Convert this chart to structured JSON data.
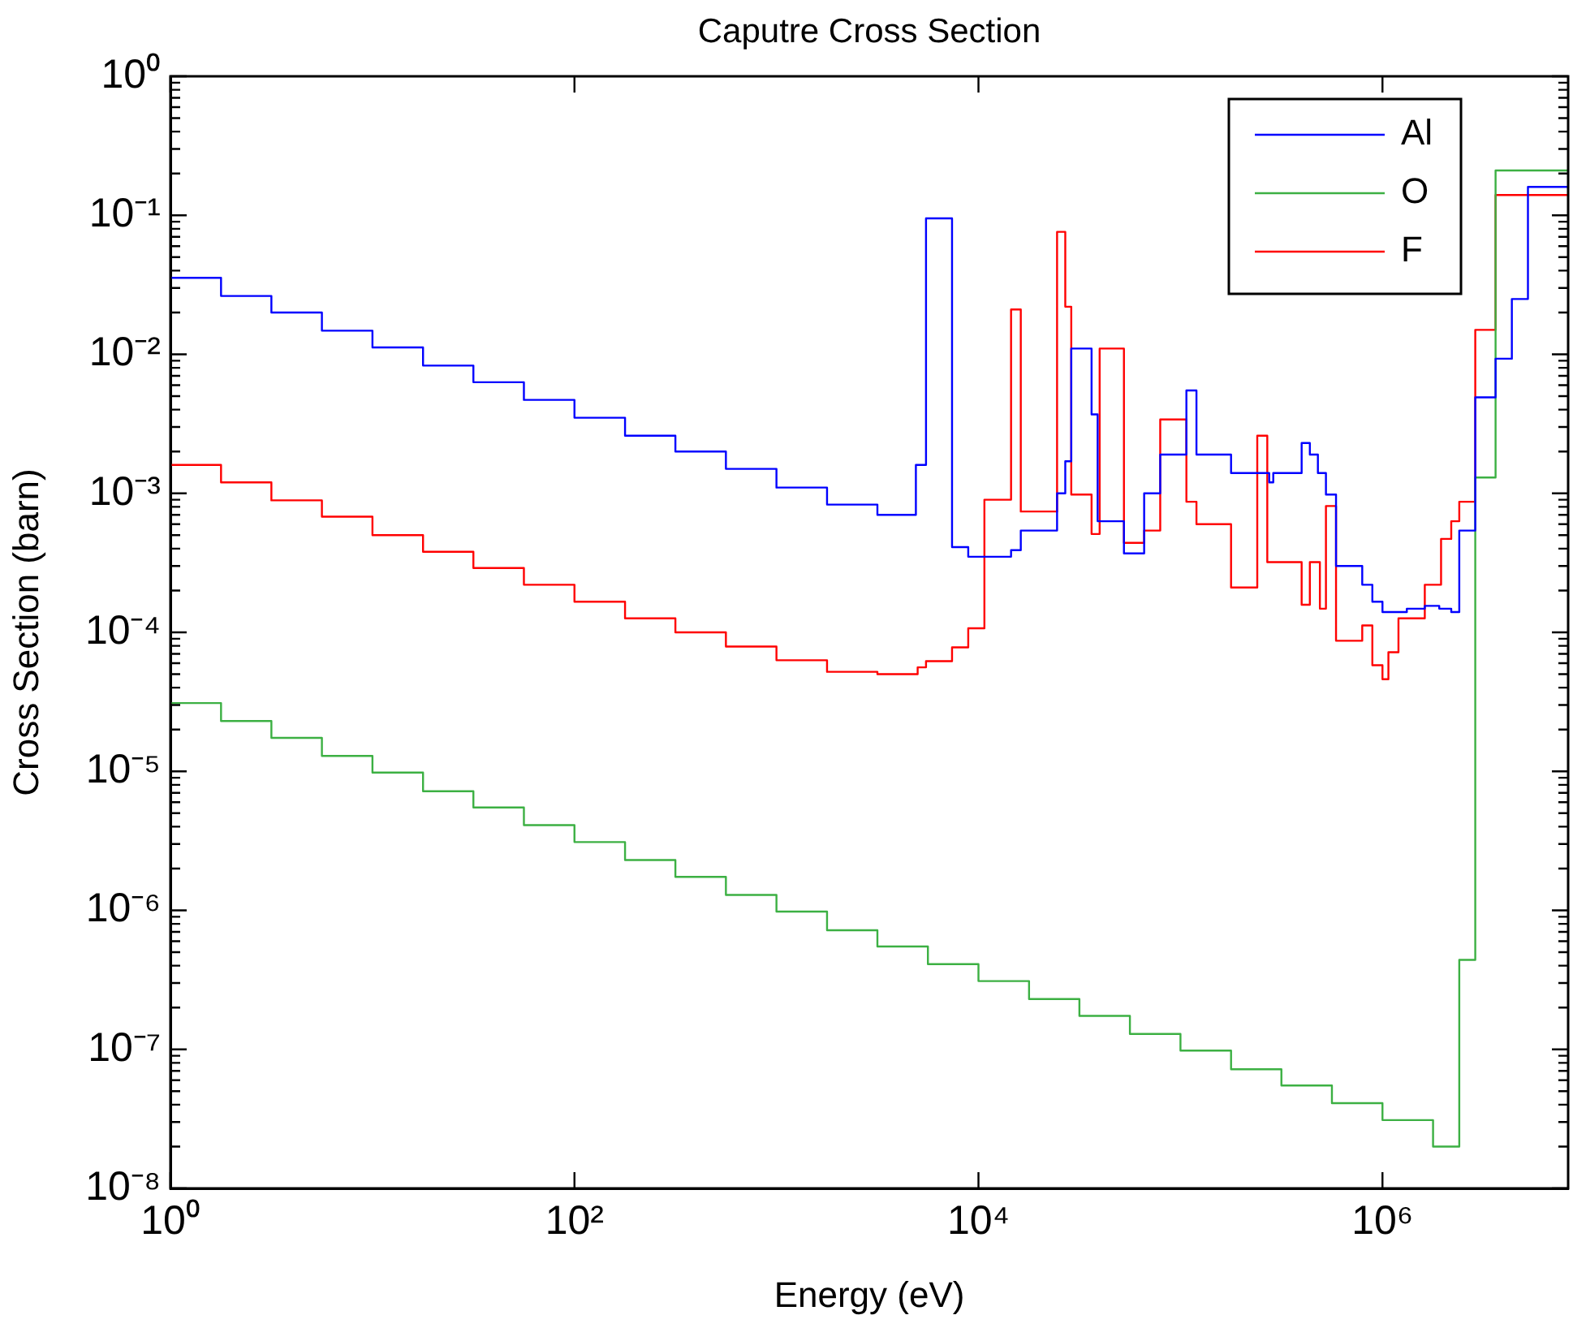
{
  "chart_data": {
    "type": "step",
    "title": "Caputre Cross Section",
    "xlabel": "Energy (eV)",
    "ylabel": "Cross Section (barn)",
    "log": "xy",
    "legend": "top right",
    "grid": false,
    "xlim": [
      1,
      8300000
    ],
    "ylim": [
      1e-08,
      1
    ],
    "xticks": [
      {
        "value": 1,
        "label": "10⁰"
      },
      {
        "value": 100,
        "label": "10²"
      },
      {
        "value": 10000,
        "label": "10⁴"
      },
      {
        "value": 1000000,
        "label": "10⁶"
      }
    ],
    "yticks": [
      {
        "value": 1e-08,
        "label": "10⁻⁸"
      },
      {
        "value": 2e-08,
        "label": null
      },
      {
        "value": 3e-08,
        "label": null
      },
      {
        "value": 4e-08,
        "label": null
      },
      {
        "value": 5e-08,
        "label": null
      },
      {
        "value": 6e-08,
        "label": null
      },
      {
        "value": 7e-08,
        "label": null
      },
      {
        "value": 8e-08,
        "label": null
      },
      {
        "value": 9e-08,
        "label": null
      },
      {
        "value": 1e-07,
        "label": "10⁻⁷"
      },
      {
        "value": 2e-07,
        "label": null
      },
      {
        "value": 3e-07,
        "label": null
      },
      {
        "value": 4e-07,
        "label": null
      },
      {
        "value": 5e-07,
        "label": null
      },
      {
        "value": 6e-07,
        "label": null
      },
      {
        "value": 7e-07,
        "label": null
      },
      {
        "value": 8e-07,
        "label": null
      },
      {
        "value": 9e-07,
        "label": null
      },
      {
        "value": 1e-06,
        "label": "10⁻⁶"
      },
      {
        "value": 2e-06,
        "label": null
      },
      {
        "value": 3e-06,
        "label": null
      },
      {
        "value": 4e-06,
        "label": null
      },
      {
        "value": 5e-06,
        "label": null
      },
      {
        "value": 6e-06,
        "label": null
      },
      {
        "value": 7e-06,
        "label": null
      },
      {
        "value": 8e-06,
        "label": null
      },
      {
        "value": 9e-06,
        "label": null
      },
      {
        "value": 1e-05,
        "label": "10⁻⁵"
      },
      {
        "value": 2e-05,
        "label": null
      },
      {
        "value": 3e-05,
        "label": null
      },
      {
        "value": 4e-05,
        "label": null
      },
      {
        "value": 5e-05,
        "label": null
      },
      {
        "value": 6e-05,
        "label": null
      },
      {
        "value": 7e-05,
        "label": null
      },
      {
        "value": 8e-05,
        "label": null
      },
      {
        "value": 9e-05,
        "label": null
      },
      {
        "value": 0.0001,
        "label": "10⁻⁴"
      },
      {
        "value": 0.0002,
        "label": null
      },
      {
        "value": 0.0003,
        "label": null
      },
      {
        "value": 0.0004,
        "label": null
      },
      {
        "value": 0.0005,
        "label": null
      },
      {
        "value": 0.0006,
        "label": null
      },
      {
        "value": 0.0007,
        "label": null
      },
      {
        "value": 0.0008,
        "label": null
      },
      {
        "value": 0.0009,
        "label": null
      },
      {
        "value": 0.001,
        "label": "10⁻³"
      },
      {
        "value": 0.002,
        "label": null
      },
      {
        "value": 0.003,
        "label": null
      },
      {
        "value": 0.004,
        "label": null
      },
      {
        "value": 0.005,
        "label": null
      },
      {
        "value": 0.006,
        "label": null
      },
      {
        "value": 0.007,
        "label": null
      },
      {
        "value": 0.008,
        "label": null
      },
      {
        "value": 0.009,
        "label": null
      },
      {
        "value": 0.01,
        "label": "10⁻²"
      },
      {
        "value": 0.02,
        "label": null
      },
      {
        "value": 0.03,
        "label": null
      },
      {
        "value": 0.04,
        "label": null
      },
      {
        "value": 0.05,
        "label": null
      },
      {
        "value": 0.06,
        "label": null
      },
      {
        "value": 0.07,
        "label": null
      },
      {
        "value": 0.08,
        "label": null
      },
      {
        "value": 0.09,
        "label": null
      },
      {
        "value": 0.1,
        "label": "10⁻¹"
      },
      {
        "value": 0.2,
        "label": null
      },
      {
        "value": 0.3,
        "label": null
      },
      {
        "value": 0.4,
        "label": null
      },
      {
        "value": 0.5,
        "label": null
      },
      {
        "value": 0.6,
        "label": null
      },
      {
        "value": 0.7,
        "label": null
      },
      {
        "value": 0.8,
        "label": null
      },
      {
        "value": 0.9,
        "label": null
      },
      {
        "value": 1,
        "label": "10⁰"
      }
    ],
    "series": [
      {
        "name": "Al",
        "color": "#0000ff",
        "x": [
          1,
          1.78,
          3.16,
          5.62,
          10,
          17.8,
          31.6,
          56.2,
          100,
          178,
          316,
          562,
          1000,
          1780,
          3160,
          4900,
          5500,
          7400,
          8900,
          14500,
          16200,
          24500,
          26900,
          28800,
          36300,
          38900,
          52500,
          66100,
          79400,
          107000,
          120000,
          178000,
          275000,
          288000,
          398000,
          437000,
          479000,
          525000,
          589000,
          794000,
          891000,
          1000000,
          1320000,
          1620000,
          1910000,
          2190000,
          2400000,
          2880000,
          3630000,
          4370000,
          5250000,
          8300000
        ],
        "values": [
          0.0355,
          0.0263,
          0.02,
          0.0148,
          0.0112,
          0.0083,
          0.0063,
          0.0047,
          0.0035,
          0.0026,
          0.002,
          0.0015,
          0.0011,
          0.00083,
          0.0007,
          0.0016,
          0.095,
          0.00041,
          0.00035,
          0.00039,
          0.00054,
          0.001,
          0.0017,
          0.011,
          0.0037,
          0.00063,
          0.00037,
          0.001,
          0.0019,
          0.0055,
          0.0019,
          0.0014,
          0.0012,
          0.0014,
          0.0023,
          0.0019,
          0.0014,
          0.00098,
          0.0003,
          0.00022,
          0.000166,
          0.00014,
          0.000148,
          0.000155,
          0.000148,
          0.00014,
          0.00054,
          0.0049,
          0.0093,
          0.025,
          0.16,
          0.16
        ]
      },
      {
        "name": "O",
        "color": "#3cb043",
        "x": [
          1,
          1.78,
          3.16,
          5.62,
          10,
          17.8,
          31.6,
          56.2,
          100,
          178,
          316,
          562,
          1000,
          1780,
          3160,
          5620,
          10000,
          17800,
          31600,
          56200,
          100000,
          178000,
          316000,
          562000,
          1000000,
          1780000,
          2400000,
          2880000,
          3630000,
          8300000
        ],
        "values": [
          3.1e-05,
          2.3e-05,
          1.74e-05,
          1.29e-05,
          9.8e-06,
          7.2e-06,
          5.5e-06,
          4.1e-06,
          3.1e-06,
          2.3e-06,
          1.74e-06,
          1.29e-06,
          9.8e-07,
          7.2e-07,
          5.5e-07,
          4.1e-07,
          3.1e-07,
          2.3e-07,
          1.74e-07,
          1.29e-07,
          9.8e-08,
          7.2e-08,
          5.5e-08,
          4.1e-08,
          3.1e-08,
          2e-08,
          4.4e-07,
          0.0013,
          0.21,
          0.21
        ]
      },
      {
        "name": "F",
        "color": "#ff0000",
        "x": [
          1,
          1.78,
          3.16,
          5.62,
          10,
          17.8,
          31.6,
          56.2,
          100,
          178,
          316,
          562,
          1000,
          1780,
          3160,
          5000,
          5500,
          7400,
          8900,
          10700,
          14500,
          16200,
          24500,
          26900,
          28800,
          36300,
          39800,
          52500,
          66100,
          79400,
          107000,
          120000,
          178000,
          240000,
          269000,
          398000,
          437000,
          490000,
          525000,
          589000,
          794000,
          891000,
          1000000,
          1070000,
          1200000,
          1620000,
          1950000,
          2190000,
          2400000,
          2880000,
          3630000,
          8300000
        ],
        "values": [
          0.0016,
          0.0012,
          0.00089,
          0.00068,
          0.0005,
          0.00038,
          0.00029,
          0.00022,
          0.000166,
          0.000126,
          0.0001,
          7.9e-05,
          6.3e-05,
          5.2e-05,
          5e-05,
          5.6e-05,
          6.2e-05,
          7.8e-05,
          0.000107,
          0.0009,
          0.021,
          0.00074,
          0.076,
          0.022,
          0.00098,
          0.00051,
          0.011,
          0.00044,
          0.00054,
          0.0034,
          0.00087,
          0.0006,
          0.00021,
          0.0026,
          0.00032,
          0.000158,
          0.00032,
          0.000148,
          0.00081,
          8.7e-05,
          0.000112,
          5.8e-05,
          4.6e-05,
          7.2e-05,
          0.000126,
          0.00022,
          0.00047,
          0.00063,
          0.00087,
          0.015,
          0.14,
          0.14
        ]
      }
    ]
  }
}
